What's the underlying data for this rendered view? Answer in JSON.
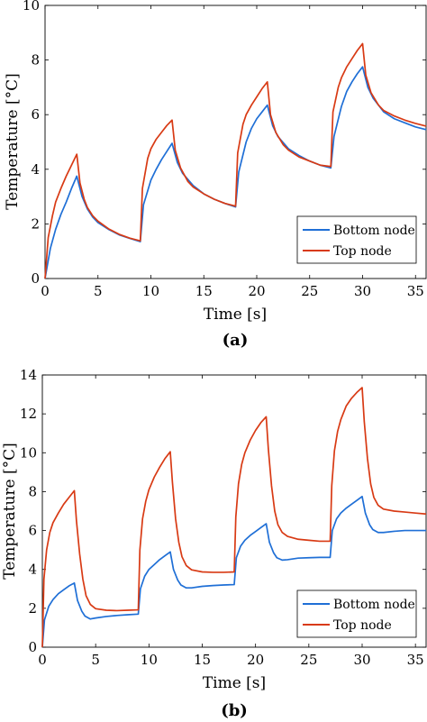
{
  "chart_data": [
    {
      "panel_label": "(a)",
      "type": "line",
      "xlabel": "Time [s]",
      "ylabel": "Temperature [°C]",
      "xlim": [
        0,
        36
      ],
      "ylim": [
        0,
        10
      ],
      "xticks": [
        0,
        5,
        10,
        15,
        20,
        25,
        30,
        35
      ],
      "yticks": [
        0,
        2,
        4,
        6,
        8,
        10
      ],
      "legend_position": "bottom-right",
      "grid": false,
      "series": [
        {
          "name": "Bottom node",
          "color": "#1f6fd6",
          "points": [
            [
              0,
              0
            ],
            [
              0.5,
              1.1
            ],
            [
              1,
              1.8
            ],
            [
              1.5,
              2.35
            ],
            [
              2,
              2.8
            ],
            [
              2.5,
              3.3
            ],
            [
              3,
              3.75
            ],
            [
              3.5,
              3.0
            ],
            [
              4,
              2.55
            ],
            [
              4.5,
              2.25
            ],
            [
              5,
              2.05
            ],
            [
              6,
              1.8
            ],
            [
              7,
              1.6
            ],
            [
              8,
              1.47
            ],
            [
              9,
              1.35
            ],
            [
              9.3,
              2.7
            ],
            [
              10,
              3.6
            ],
            [
              10.5,
              4.0
            ],
            [
              11,
              4.35
            ],
            [
              11.5,
              4.65
            ],
            [
              12,
              4.95
            ],
            [
              12.5,
              4.25
            ],
            [
              13,
              3.85
            ],
            [
              14,
              3.4
            ],
            [
              15,
              3.1
            ],
            [
              16,
              2.9
            ],
            [
              17,
              2.75
            ],
            [
              18,
              2.62
            ],
            [
              18.3,
              3.9
            ],
            [
              19,
              5.0
            ],
            [
              19.5,
              5.5
            ],
            [
              20,
              5.85
            ],
            [
              20.5,
              6.1
            ],
            [
              21,
              6.35
            ],
            [
              21.5,
              5.6
            ],
            [
              22,
              5.2
            ],
            [
              23,
              4.75
            ],
            [
              24,
              4.5
            ],
            [
              25,
              4.3
            ],
            [
              26,
              4.15
            ],
            [
              27,
              4.05
            ],
            [
              27.3,
              5.2
            ],
            [
              28,
              6.3
            ],
            [
              28.5,
              6.85
            ],
            [
              29,
              7.2
            ],
            [
              29.5,
              7.5
            ],
            [
              30,
              7.75
            ],
            [
              30.5,
              7.0
            ],
            [
              31,
              6.6
            ],
            [
              32,
              6.1
            ],
            [
              33,
              5.85
            ],
            [
              34,
              5.7
            ],
            [
              35,
              5.55
            ],
            [
              36,
              5.45
            ]
          ]
        },
        {
          "name": "Top node",
          "color": "#d83a14",
          "points": [
            [
              0,
              0
            ],
            [
              0.3,
              1.5
            ],
            [
              0.7,
              2.3
            ],
            [
              1,
              2.8
            ],
            [
              1.5,
              3.3
            ],
            [
              2,
              3.75
            ],
            [
              2.5,
              4.15
            ],
            [
              3,
              4.55
            ],
            [
              3.3,
              3.5
            ],
            [
              3.7,
              2.9
            ],
            [
              4,
              2.6
            ],
            [
              4.5,
              2.3
            ],
            [
              5,
              2.1
            ],
            [
              6,
              1.82
            ],
            [
              7,
              1.62
            ],
            [
              8,
              1.48
            ],
            [
              9,
              1.38
            ],
            [
              9.2,
              3.3
            ],
            [
              9.7,
              4.4
            ],
            [
              10,
              4.75
            ],
            [
              10.5,
              5.1
            ],
            [
              11,
              5.35
            ],
            [
              11.5,
              5.6
            ],
            [
              12,
              5.8
            ],
            [
              12.3,
              4.7
            ],
            [
              12.8,
              4.05
            ],
            [
              13.5,
              3.55
            ],
            [
              14,
              3.35
            ],
            [
              15,
              3.1
            ],
            [
              16,
              2.9
            ],
            [
              17,
              2.75
            ],
            [
              18,
              2.65
            ],
            [
              18.2,
              4.6
            ],
            [
              18.7,
              5.65
            ],
            [
              19,
              6.0
            ],
            [
              19.5,
              6.35
            ],
            [
              20,
              6.65
            ],
            [
              20.5,
              6.95
            ],
            [
              21,
              7.2
            ],
            [
              21.3,
              6.0
            ],
            [
              21.8,
              5.35
            ],
            [
              22.5,
              4.9
            ],
            [
              23,
              4.7
            ],
            [
              24,
              4.45
            ],
            [
              25,
              4.3
            ],
            [
              26,
              4.15
            ],
            [
              27,
              4.1
            ],
            [
              27.2,
              6.1
            ],
            [
              27.7,
              7.0
            ],
            [
              28,
              7.35
            ],
            [
              28.5,
              7.75
            ],
            [
              29,
              8.05
            ],
            [
              29.5,
              8.35
            ],
            [
              30,
              8.6
            ],
            [
              30.3,
              7.45
            ],
            [
              30.8,
              6.8
            ],
            [
              31.5,
              6.35
            ],
            [
              32,
              6.15
            ],
            [
              33,
              5.95
            ],
            [
              34,
              5.8
            ],
            [
              35,
              5.68
            ],
            [
              36,
              5.58
            ]
          ]
        }
      ]
    },
    {
      "panel_label": "(b)",
      "type": "line",
      "xlabel": "Time [s]",
      "ylabel": "Temperature [°C]",
      "xlim": [
        0,
        36
      ],
      "ylim": [
        0,
        14
      ],
      "xticks": [
        0,
        5,
        10,
        15,
        20,
        25,
        30,
        35
      ],
      "yticks": [
        0,
        2,
        4,
        6,
        8,
        10,
        12,
        14
      ],
      "legend_position": "bottom-right",
      "grid": false,
      "series": [
        {
          "name": "Bottom node",
          "color": "#1f6fd6",
          "points": [
            [
              0,
              0
            ],
            [
              0.2,
              1.4
            ],
            [
              0.6,
              2.1
            ],
            [
              1,
              2.45
            ],
            [
              1.5,
              2.75
            ],
            [
              2,
              2.95
            ],
            [
              2.5,
              3.15
            ],
            [
              3,
              3.3
            ],
            [
              3.3,
              2.4
            ],
            [
              3.7,
              1.85
            ],
            [
              4,
              1.6
            ],
            [
              4.5,
              1.45
            ],
            [
              5,
              1.5
            ],
            [
              6,
              1.58
            ],
            [
              7,
              1.63
            ],
            [
              8,
              1.67
            ],
            [
              9,
              1.7
            ],
            [
              9.2,
              3.0
            ],
            [
              9.6,
              3.65
            ],
            [
              10,
              4.0
            ],
            [
              10.5,
              4.25
            ],
            [
              11,
              4.5
            ],
            [
              11.5,
              4.7
            ],
            [
              12,
              4.9
            ],
            [
              12.3,
              4.0
            ],
            [
              12.7,
              3.45
            ],
            [
              13,
              3.2
            ],
            [
              13.5,
              3.05
            ],
            [
              14,
              3.05
            ],
            [
              15,
              3.13
            ],
            [
              16,
              3.17
            ],
            [
              17,
              3.2
            ],
            [
              18,
              3.22
            ],
            [
              18.2,
              4.6
            ],
            [
              18.6,
              5.2
            ],
            [
              19,
              5.5
            ],
            [
              19.5,
              5.75
            ],
            [
              20,
              5.95
            ],
            [
              20.5,
              6.15
            ],
            [
              21,
              6.35
            ],
            [
              21.3,
              5.4
            ],
            [
              21.7,
              4.85
            ],
            [
              22,
              4.6
            ],
            [
              22.5,
              4.48
            ],
            [
              23,
              4.5
            ],
            [
              24,
              4.58
            ],
            [
              25,
              4.6
            ],
            [
              26,
              4.62
            ],
            [
              27,
              4.62
            ],
            [
              27.2,
              6.0
            ],
            [
              27.6,
              6.6
            ],
            [
              28,
              6.9
            ],
            [
              28.5,
              7.15
            ],
            [
              29,
              7.35
            ],
            [
              29.5,
              7.55
            ],
            [
              30,
              7.75
            ],
            [
              30.3,
              6.9
            ],
            [
              30.7,
              6.3
            ],
            [
              31,
              6.05
            ],
            [
              31.5,
              5.9
            ],
            [
              32,
              5.9
            ],
            [
              33,
              5.96
            ],
            [
              34,
              6.0
            ],
            [
              35,
              6.0
            ],
            [
              36,
              6.0
            ]
          ]
        },
        {
          "name": "Top node",
          "color": "#d83a14",
          "points": [
            [
              0,
              0
            ],
            [
              0.15,
              3.5
            ],
            [
              0.4,
              5.0
            ],
            [
              0.7,
              5.9
            ],
            [
              1,
              6.4
            ],
            [
              1.5,
              6.9
            ],
            [
              2,
              7.35
            ],
            [
              2.5,
              7.7
            ],
            [
              3,
              8.05
            ],
            [
              3.2,
              6.5
            ],
            [
              3.5,
              4.8
            ],
            [
              3.8,
              3.5
            ],
            [
              4.1,
              2.65
            ],
            [
              4.5,
              2.2
            ],
            [
              5,
              1.98
            ],
            [
              6,
              1.9
            ],
            [
              7,
              1.88
            ],
            [
              8,
              1.9
            ],
            [
              9,
              1.92
            ],
            [
              9.15,
              5.0
            ],
            [
              9.4,
              6.6
            ],
            [
              9.7,
              7.5
            ],
            [
              10,
              8.1
            ],
            [
              10.5,
              8.75
            ],
            [
              11,
              9.25
            ],
            [
              11.5,
              9.7
            ],
            [
              12,
              10.05
            ],
            [
              12.2,
              8.5
            ],
            [
              12.5,
              6.6
            ],
            [
              12.8,
              5.4
            ],
            [
              13.1,
              4.65
            ],
            [
              13.5,
              4.2
            ],
            [
              14,
              3.98
            ],
            [
              15,
              3.87
            ],
            [
              16,
              3.85
            ],
            [
              17,
              3.85
            ],
            [
              18,
              3.87
            ],
            [
              18.15,
              6.7
            ],
            [
              18.4,
              8.4
            ],
            [
              18.7,
              9.4
            ],
            [
              19,
              10.0
            ],
            [
              19.5,
              10.65
            ],
            [
              20,
              11.15
            ],
            [
              20.5,
              11.55
            ],
            [
              21,
              11.85
            ],
            [
              21.2,
              10.2
            ],
            [
              21.5,
              8.3
            ],
            [
              21.8,
              7.0
            ],
            [
              22.1,
              6.3
            ],
            [
              22.5,
              5.9
            ],
            [
              23,
              5.7
            ],
            [
              24,
              5.55
            ],
            [
              25,
              5.5
            ],
            [
              26,
              5.45
            ],
            [
              27,
              5.45
            ],
            [
              27.15,
              8.3
            ],
            [
              27.4,
              10.1
            ],
            [
              27.7,
              11.1
            ],
            [
              28,
              11.7
            ],
            [
              28.5,
              12.4
            ],
            [
              29,
              12.8
            ],
            [
              29.5,
              13.1
            ],
            [
              30,
              13.35
            ],
            [
              30.2,
              11.6
            ],
            [
              30.5,
              9.7
            ],
            [
              30.8,
              8.4
            ],
            [
              31.1,
              7.7
            ],
            [
              31.5,
              7.3
            ],
            [
              32,
              7.1
            ],
            [
              33,
              7.0
            ],
            [
              34,
              6.95
            ],
            [
              35,
              6.9
            ],
            [
              36,
              6.85
            ]
          ]
        }
      ]
    }
  ]
}
